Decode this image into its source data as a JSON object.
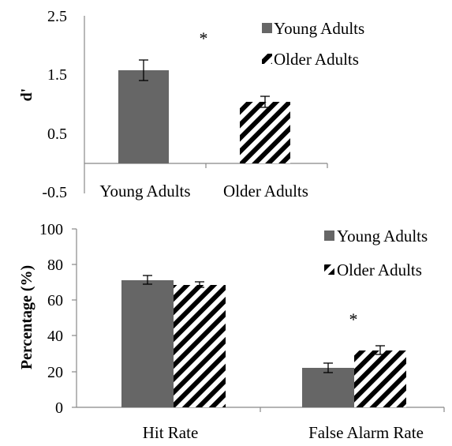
{
  "chart_data": [
    {
      "type": "bar",
      "ylabel": "d'",
      "ylim": [
        -0.5,
        2.5
      ],
      "yticks": [
        "2.5",
        "1.5",
        "0.5",
        "-0.5"
      ],
      "categories": [
        "Young Adults",
        "Older Adults"
      ],
      "series": [
        {
          "name": "Young Adults",
          "values": [
            1.57,
            null
          ],
          "errors": [
            0.17,
            null
          ],
          "pattern": "solid"
        },
        {
          "name": "Older Adults",
          "values": [
            null,
            1.03
          ],
          "errors": [
            null,
            0.09
          ],
          "pattern": "hatched"
        }
      ],
      "legend": [
        "Young Adults",
        "Older Adults"
      ],
      "annotation": "*",
      "grid": false,
      "legend_position": "top-right"
    },
    {
      "type": "bar",
      "ylabel": "Percentage (%)",
      "ylim": [
        0,
        100
      ],
      "yticks": [
        "100",
        "80",
        "60",
        "40",
        "20",
        "0"
      ],
      "categories": [
        "Hit Rate",
        "False Alarm Rate"
      ],
      "series": [
        {
          "name": "Young Adults",
          "values": [
            70.5,
            22
          ],
          "errors": [
            2.5,
            2.8
          ],
          "pattern": "solid"
        },
        {
          "name": "Older Adults",
          "values": [
            68,
            31.5
          ],
          "errors": [
            1.5,
            2.5
          ],
          "pattern": "hatched"
        }
      ],
      "legend": [
        "Young Adults",
        "Older Adults"
      ],
      "annotation": "*",
      "grid": false,
      "legend_position": "top-right"
    }
  ],
  "colors": {
    "young": "#666666",
    "hatch": "#000000",
    "axis": "#888888"
  }
}
